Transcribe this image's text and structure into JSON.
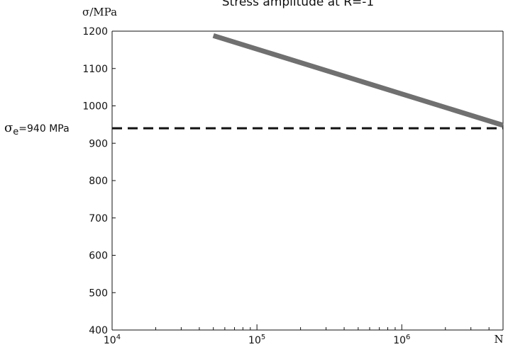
{
  "chart_data": {
    "type": "line",
    "title": "Stress amplitude at R=-1",
    "ylabel": "σ/MPa",
    "xlabel": "N",
    "xscale": "log",
    "xlim": [
      10000,
      5000000
    ],
    "ylim": [
      400,
      1200
    ],
    "yticks": [
      400,
      500,
      600,
      700,
      800,
      900,
      1000,
      1100,
      1200
    ],
    "xticks": [
      {
        "value": 10000,
        "base": "10",
        "exp": "4"
      },
      {
        "value": 100000,
        "base": "10",
        "exp": "5"
      },
      {
        "value": 1000000,
        "base": "10",
        "exp": "6"
      }
    ],
    "series": [
      {
        "x": [
          50000,
          5000000
        ],
        "y": [
          1188,
          948
        ],
        "color": "#707070",
        "style": "solid"
      }
    ],
    "reference_line": {
      "y": 940,
      "style": "dashed",
      "color": "#111111",
      "label_symbol": "σ",
      "label_sub": "e",
      "label_rest": "=940 MPa"
    },
    "grid": false
  }
}
